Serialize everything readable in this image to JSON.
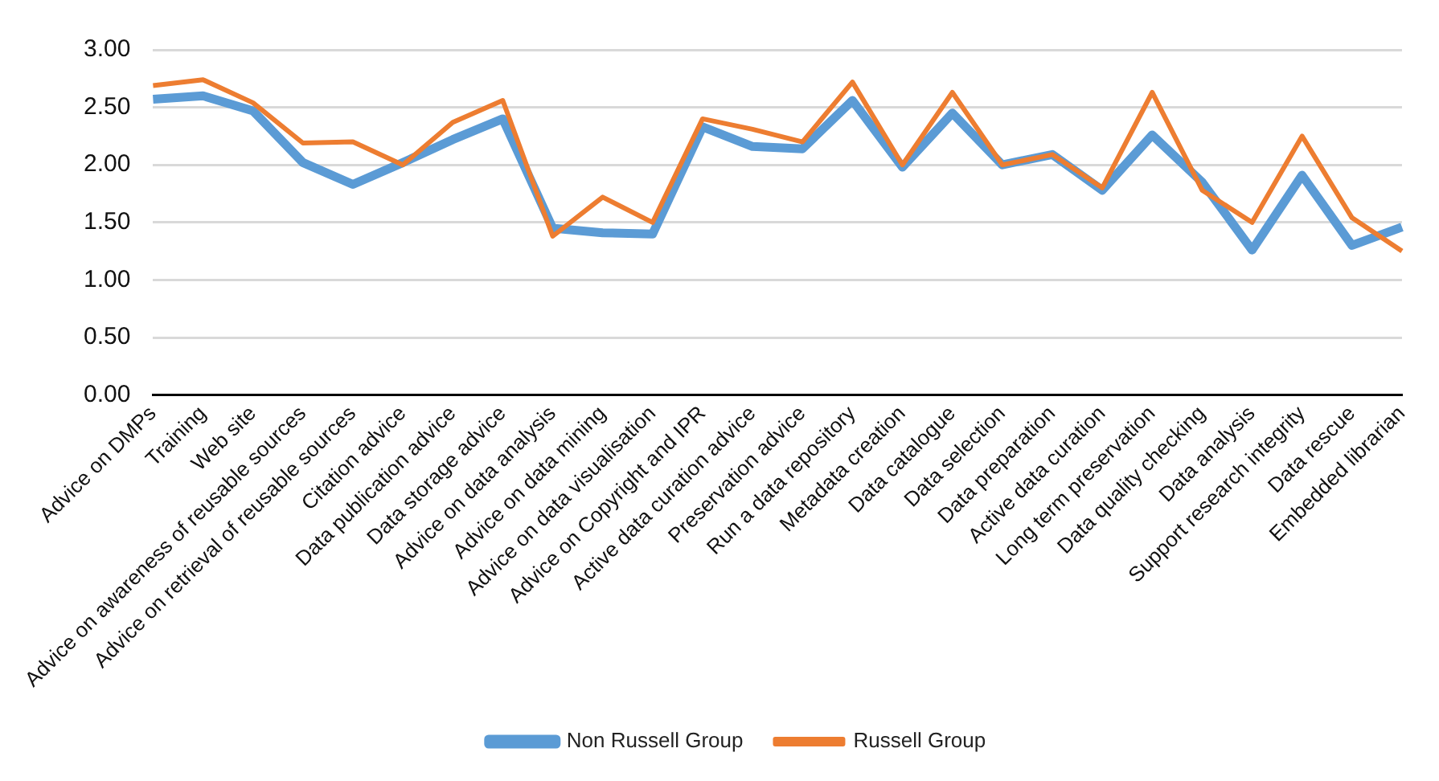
{
  "chart_data": {
    "type": "line",
    "categories": [
      "Advice on DMPs",
      "Training",
      "Web site",
      "Advice on awareness of reusable sources",
      "Advice on retrieval of reusable sources",
      "Citation advice",
      "Data publication advice",
      "Data storage advice",
      "Advice on data analysis",
      "Advice on data mining",
      "Advice on data visualisation",
      "Advice on Copyright and IPR",
      "Active data curation advice",
      "Preservation advice",
      "Run a data repository",
      "Metadata creation",
      "Data catalogue",
      "Data selection",
      "Data preparation",
      "Active data curation",
      "Long term preservation",
      "Data quality checking",
      "Data analysis",
      "Support research integrity",
      "Data rescue",
      "Embedded librarian"
    ],
    "series": [
      {
        "name": "Non Russell Group",
        "color": "#5b9bd5",
        "values": [
          2.57,
          2.6,
          2.47,
          2.02,
          1.83,
          2.02,
          2.22,
          2.4,
          1.45,
          1.41,
          1.4,
          2.33,
          2.16,
          2.14,
          2.56,
          1.98,
          2.45,
          2.0,
          2.09,
          1.78,
          2.26,
          1.85,
          1.26,
          1.91,
          1.3,
          1.46
        ]
      },
      {
        "name": "Russell Group",
        "color": "#ed7d31",
        "values": [
          2.69,
          2.74,
          2.54,
          2.19,
          2.2,
          2.0,
          2.37,
          2.56,
          1.38,
          1.72,
          1.5,
          2.4,
          2.31,
          2.2,
          2.72,
          2.0,
          2.63,
          2.0,
          2.09,
          1.8,
          2.63,
          1.78,
          1.5,
          2.25,
          1.54,
          1.25
        ]
      }
    ],
    "ylim": [
      0,
      3
    ],
    "yticks": [
      {
        "value": 0,
        "label": "0.00"
      },
      {
        "value": 0.5,
        "label": "0.50"
      },
      {
        "value": 1,
        "label": "1.00"
      },
      {
        "value": 1.5,
        "label": "1.50"
      },
      {
        "value": 2,
        "label": "2.00"
      },
      {
        "value": 2.5,
        "label": "2.50"
      },
      {
        "value": 3,
        "label": "3.00"
      }
    ],
    "grid": "y",
    "legend": "bottom",
    "marker": "none",
    "line_style": "solid"
  }
}
